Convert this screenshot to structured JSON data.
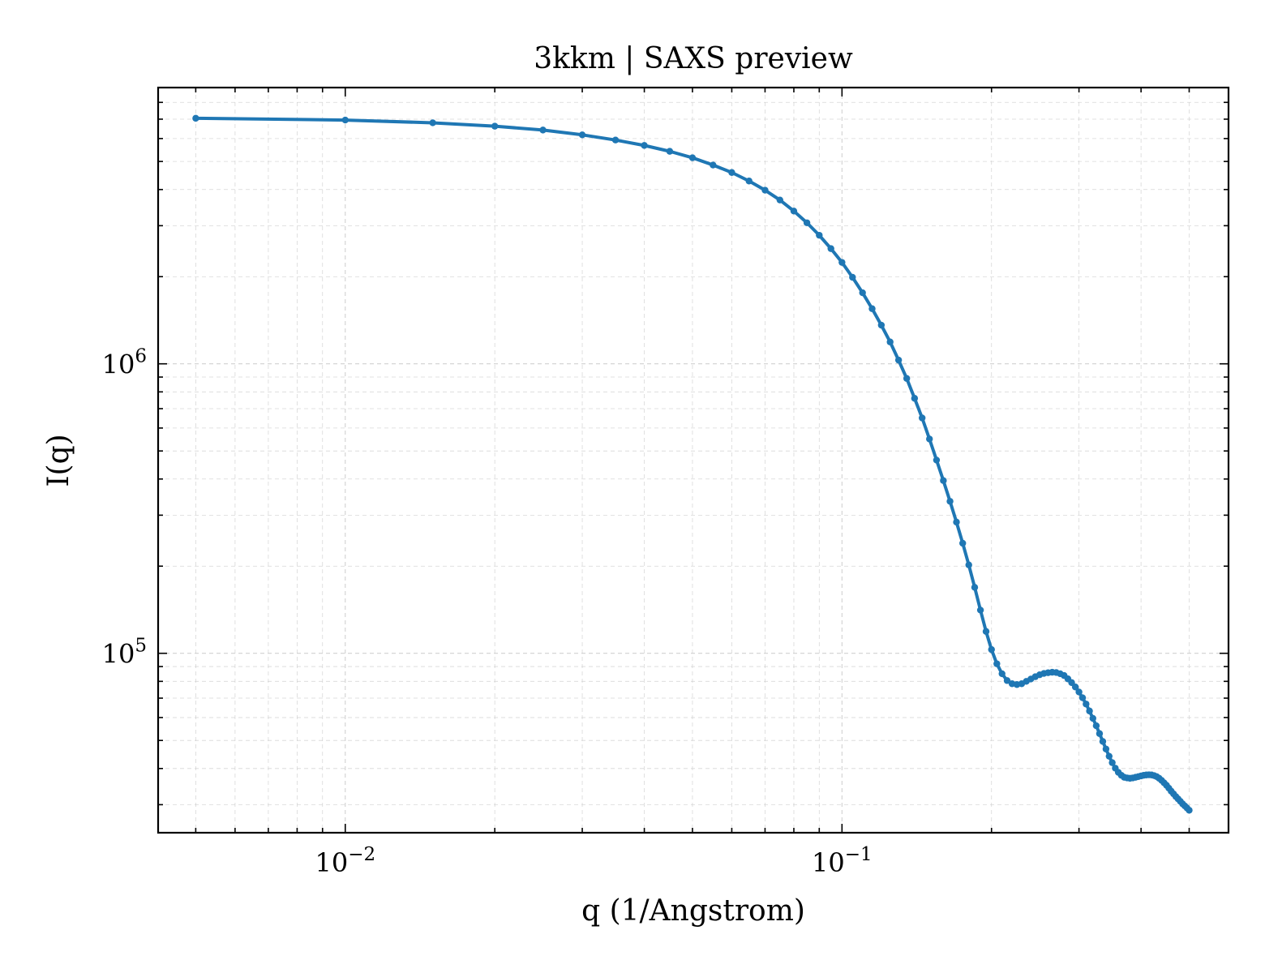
{
  "chart_data": {
    "type": "line",
    "title": "3kkm | SAXS preview",
    "xlabel": "q (1/Angstrom)",
    "ylabel": "I(q)",
    "xscale": "log",
    "yscale": "log",
    "xlim": [
      0.0042,
      0.6
    ],
    "ylim": [
      24000,
      9000000
    ],
    "x_ticks": [
      {
        "value": 0.01,
        "base": "10",
        "exp": "−2"
      },
      {
        "value": 0.1,
        "base": "10",
        "exp": "−1"
      }
    ],
    "y_ticks": [
      {
        "value": 100000,
        "base": "10",
        "exp": "5"
      },
      {
        "value": 1000000,
        "base": "10",
        "exp": "6"
      }
    ],
    "grid": true,
    "legend": "none",
    "series": [
      {
        "color": "#1f77b4",
        "marker": "circle",
        "points": [
          [
            0.005,
            7050000
          ],
          [
            0.01,
            6950000
          ],
          [
            0.015,
            6800000
          ],
          [
            0.02,
            6620000
          ],
          [
            0.025,
            6420000
          ],
          [
            0.03,
            6180000
          ],
          [
            0.035,
            5930000
          ],
          [
            0.04,
            5680000
          ],
          [
            0.045,
            5420000
          ],
          [
            0.05,
            5150000
          ],
          [
            0.055,
            4860000
          ],
          [
            0.06,
            4580000
          ],
          [
            0.065,
            4280000
          ],
          [
            0.07,
            3980000
          ],
          [
            0.075,
            3680000
          ],
          [
            0.08,
            3370000
          ],
          [
            0.085,
            3070000
          ],
          [
            0.09,
            2780000
          ],
          [
            0.095,
            2500000
          ],
          [
            0.1,
            2240000
          ],
          [
            0.105,
            1990000
          ],
          [
            0.11,
            1760000
          ],
          [
            0.115,
            1550000
          ],
          [
            0.12,
            1360000
          ],
          [
            0.125,
            1190000
          ],
          [
            0.13,
            1030000
          ],
          [
            0.135,
            890000
          ],
          [
            0.14,
            760000
          ],
          [
            0.145,
            650000
          ],
          [
            0.15,
            550000
          ],
          [
            0.155,
            465000
          ],
          [
            0.16,
            395000
          ],
          [
            0.165,
            335000
          ],
          [
            0.17,
            284000
          ],
          [
            0.175,
            240000
          ],
          [
            0.18,
            202000
          ],
          [
            0.185,
            169000
          ],
          [
            0.19,
            141000
          ],
          [
            0.195,
            119000
          ],
          [
            0.2,
            103000
          ],
          [
            0.205,
            92000
          ],
          [
            0.21,
            85000
          ],
          [
            0.215,
            80500
          ],
          [
            0.22,
            78500
          ],
          [
            0.225,
            78000
          ],
          [
            0.23,
            78500
          ],
          [
            0.235,
            80000
          ],
          [
            0.24,
            81500
          ],
          [
            0.245,
            83000
          ],
          [
            0.25,
            84300
          ],
          [
            0.255,
            85200
          ],
          [
            0.26,
            85700
          ],
          [
            0.265,
            86000
          ],
          [
            0.27,
            85800
          ],
          [
            0.275,
            85000
          ],
          [
            0.28,
            83800
          ],
          [
            0.285,
            81600
          ],
          [
            0.29,
            79200
          ],
          [
            0.295,
            76500
          ],
          [
            0.3,
            73500
          ],
          [
            0.305,
            70200
          ],
          [
            0.31,
            66800
          ],
          [
            0.315,
            63200
          ],
          [
            0.32,
            59600
          ],
          [
            0.325,
            56200
          ],
          [
            0.33,
            52800
          ],
          [
            0.335,
            49600
          ],
          [
            0.34,
            46700
          ],
          [
            0.345,
            44100
          ],
          [
            0.35,
            41900
          ],
          [
            0.355,
            40100
          ],
          [
            0.36,
            38800
          ],
          [
            0.365,
            37900
          ],
          [
            0.37,
            37300
          ],
          [
            0.375,
            37100
          ],
          [
            0.38,
            37000
          ],
          [
            0.385,
            37100
          ],
          [
            0.39,
            37300
          ],
          [
            0.395,
            37500
          ],
          [
            0.4,
            37700
          ],
          [
            0.405,
            37900
          ],
          [
            0.41,
            38000
          ],
          [
            0.415,
            38050
          ],
          [
            0.42,
            38000
          ],
          [
            0.425,
            37800
          ],
          [
            0.43,
            37500
          ],
          [
            0.435,
            37000
          ],
          [
            0.44,
            36400
          ],
          [
            0.445,
            35700
          ],
          [
            0.45,
            35000
          ],
          [
            0.455,
            34200
          ],
          [
            0.46,
            33400
          ],
          [
            0.465,
            32700
          ],
          [
            0.47,
            32000
          ],
          [
            0.475,
            31400
          ],
          [
            0.48,
            30800
          ],
          [
            0.485,
            30200
          ],
          [
            0.49,
            29700
          ],
          [
            0.495,
            29200
          ],
          [
            0.5,
            28700
          ]
        ]
      }
    ]
  }
}
